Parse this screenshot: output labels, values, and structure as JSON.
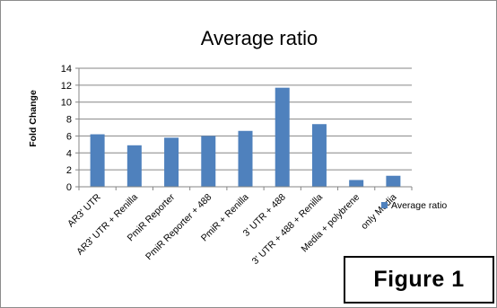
{
  "chart_data": {
    "type": "bar",
    "title": "Average ratio",
    "ylabel": "Fold Change",
    "xlabel": "",
    "ylim": [
      0,
      14
    ],
    "yticks": [
      0,
      2,
      4,
      6,
      8,
      10,
      12,
      14
    ],
    "categories": [
      "AR3' UTR",
      "AR3' UTR + Renilla",
      "PmiR Reporter",
      "PmiR Reporter + 488",
      "PmiR + Renilla",
      "3' UTR + 488",
      "3' UTR + 488 + Renilla",
      "Media + polybrene",
      "only Media"
    ],
    "series": [
      {
        "name": "Average ratio",
        "values": [
          6.2,
          4.9,
          5.8,
          6.0,
          6.6,
          11.7,
          7.4,
          0.8,
          1.3
        ]
      }
    ],
    "grid": true,
    "legend_position": "right",
    "bar_color": "#4f81bd",
    "grid_color": "#868686"
  },
  "figure_label": "Figure 1"
}
